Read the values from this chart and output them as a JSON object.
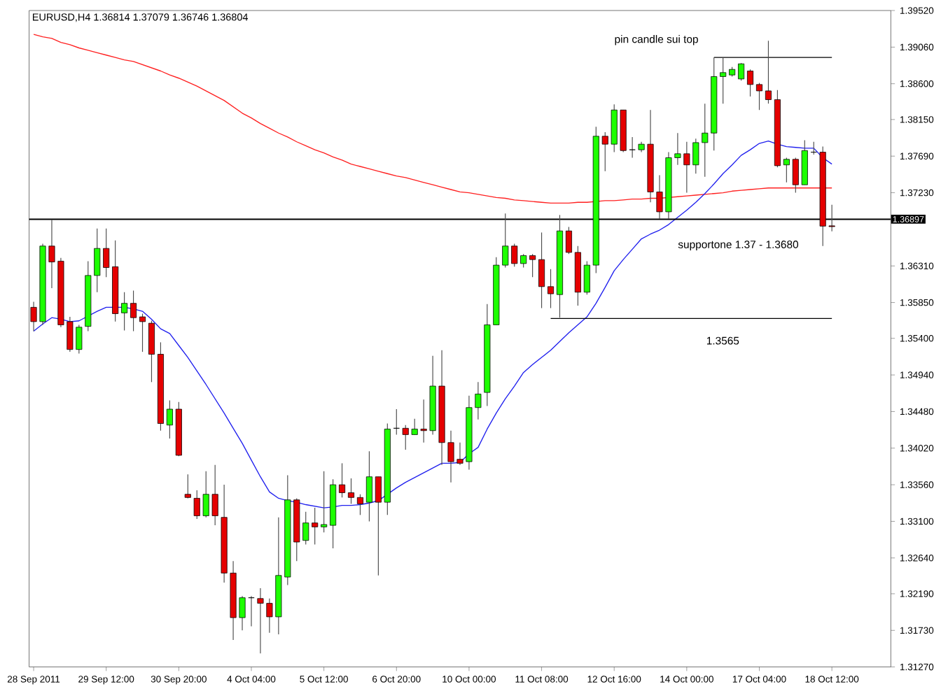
{
  "chart_data": {
    "type": "candlestick",
    "title": "EURUSD,H4  1.36814 1.37079 1.36746 1.36804",
    "categories": [
      "28 Sep 2011",
      null,
      null,
      null,
      null,
      null,
      null,
      null,
      "29 Sep 12:00",
      null,
      null,
      null,
      null,
      null,
      null,
      null,
      "30 Sep 20:00",
      null,
      null,
      null,
      null,
      null,
      null,
      null,
      "4 Oct 04:00",
      null,
      null,
      null,
      null,
      null,
      null,
      null,
      "5 Oct 12:00",
      null,
      null,
      null,
      null,
      null,
      null,
      null,
      "6 Oct 20:00",
      null,
      null,
      null,
      null,
      null,
      null,
      null,
      "10 Oct 00:00",
      null,
      null,
      null,
      null,
      null,
      null,
      null,
      "11 Oct 08:00",
      null,
      null,
      null,
      null,
      null,
      null,
      null,
      "12 Oct 16:00",
      null,
      null,
      null,
      null,
      null,
      null,
      null,
      "14 Oct 00:00",
      null,
      null,
      null,
      null,
      null,
      null,
      null,
      "17 Oct 04:00",
      null,
      null,
      null,
      null,
      null,
      null,
      null,
      "18 Oct 12:00"
    ],
    "ohlc": [
      [
        1.3579,
        1.3586,
        1.3549,
        1.3561
      ],
      [
        1.3561,
        1.3659,
        1.3557,
        1.3656
      ],
      [
        1.3656,
        1.3689,
        1.3603,
        1.3636
      ],
      [
        1.3637,
        1.3641,
        1.3554,
        1.3557
      ],
      [
        1.3561,
        1.3567,
        1.3523,
        1.3526
      ],
      [
        1.3526,
        1.3557,
        1.3521,
        1.3554
      ],
      [
        1.3555,
        1.3637,
        1.3549,
        1.3619
      ],
      [
        1.3619,
        1.3678,
        1.3598,
        1.3653
      ],
      [
        1.3653,
        1.3678,
        1.3617,
        1.3629
      ],
      [
        1.363,
        1.3663,
        1.3561,
        1.3571
      ],
      [
        1.3572,
        1.3598,
        1.355,
        1.3584
      ],
      [
        1.3584,
        1.36,
        1.3549,
        1.3566
      ],
      [
        1.3567,
        1.3571,
        1.3523,
        1.3561
      ],
      [
        1.3559,
        1.3562,
        1.3485,
        1.352
      ],
      [
        1.352,
        1.3535,
        1.3424,
        1.3433
      ],
      [
        1.3431,
        1.3462,
        1.3414,
        1.3451
      ],
      [
        1.3451,
        1.346,
        1.3392,
        1.3393
      ],
      [
        1.3344,
        1.3369,
        1.3339,
        1.334
      ],
      [
        1.3339,
        1.3349,
        1.3313,
        1.3317
      ],
      [
        1.3317,
        1.3373,
        1.3315,
        1.3344
      ],
      [
        1.3344,
        1.3381,
        1.3305,
        1.3317
      ],
      [
        1.3315,
        1.3356,
        1.3233,
        1.3245
      ],
      [
        1.3245,
        1.326,
        1.3161,
        1.3189
      ],
      [
        1.3189,
        1.3216,
        1.3173,
        1.3214
      ],
      [
        1.3214,
        1.3216,
        1.3178,
        1.3214
      ],
      [
        1.3213,
        1.3226,
        1.3144,
        1.3207
      ],
      [
        1.3207,
        1.3213,
        1.317,
        1.319
      ],
      [
        1.319,
        1.3315,
        1.3168,
        1.3242
      ],
      [
        1.324,
        1.3368,
        1.323,
        1.3337
      ],
      [
        1.3337,
        1.3339,
        1.326,
        1.3284
      ],
      [
        1.3286,
        1.3322,
        1.3281,
        1.3308
      ],
      [
        1.3308,
        1.3327,
        1.3281,
        1.3303
      ],
      [
        1.3303,
        1.3373,
        1.3296,
        1.3306
      ],
      [
        1.3305,
        1.3363,
        1.3276,
        1.3356
      ],
      [
        1.3356,
        1.3383,
        1.334,
        1.3346
      ],
      [
        1.3346,
        1.3364,
        1.3332,
        1.334
      ],
      [
        1.334,
        1.3344,
        1.3318,
        1.3332
      ],
      [
        1.3334,
        1.3398,
        1.331,
        1.3366
      ],
      [
        1.3366,
        1.3366,
        1.3242,
        1.3334
      ],
      [
        1.3334,
        1.3433,
        1.3318,
        1.3426
      ],
      [
        1.3427,
        1.3451,
        1.3419,
        1.3427
      ],
      [
        1.3427,
        1.3431,
        1.34,
        1.3419
      ],
      [
        1.3419,
        1.3439,
        1.3419,
        1.3426
      ],
      [
        1.3426,
        1.3463,
        1.3409,
        1.3424
      ],
      [
        1.3424,
        1.3518,
        1.3419,
        1.348
      ],
      [
        1.348,
        1.3525,
        1.3381,
        1.3409
      ],
      [
        1.3409,
        1.3424,
        1.3359,
        1.3385
      ],
      [
        1.3388,
        1.3409,
        1.3381,
        1.3383
      ],
      [
        1.3385,
        1.3468,
        1.3375,
        1.3453
      ],
      [
        1.3453,
        1.3485,
        1.3438,
        1.347
      ],
      [
        1.3472,
        1.3583,
        1.3455,
        1.3557
      ],
      [
        1.3557,
        1.3642,
        1.3557,
        1.3632
      ],
      [
        1.3632,
        1.3697,
        1.3629,
        1.3656
      ],
      [
        1.3656,
        1.3659,
        1.363,
        1.3634
      ],
      [
        1.3634,
        1.3646,
        1.3629,
        1.3644
      ],
      [
        1.3644,
        1.3646,
        1.3617,
        1.3639
      ],
      [
        1.3639,
        1.3673,
        1.3578,
        1.3605
      ],
      [
        1.3605,
        1.3627,
        1.3578,
        1.3596
      ],
      [
        1.3595,
        1.3695,
        1.3566,
        1.3675
      ],
      [
        1.3675,
        1.368,
        1.3646,
        1.3648
      ],
      [
        1.3648,
        1.3656,
        1.3581,
        1.3598
      ],
      [
        1.3598,
        1.3637,
        1.3595,
        1.3632
      ],
      [
        1.3632,
        1.3806,
        1.3622,
        1.3794
      ],
      [
        1.3794,
        1.3799,
        1.375,
        1.3784
      ],
      [
        1.3784,
        1.3834,
        1.3774,
        1.3827
      ],
      [
        1.3827,
        1.3827,
        1.3774,
        1.3776
      ],
      [
        1.3777,
        1.3793,
        1.3767,
        1.3777
      ],
      [
        1.3777,
        1.3787,
        1.3774,
        1.3784
      ],
      [
        1.3784,
        1.3827,
        1.3711,
        1.3724
      ],
      [
        1.3724,
        1.3745,
        1.369,
        1.3699
      ],
      [
        1.3699,
        1.3774,
        1.369,
        1.3767
      ],
      [
        1.3767,
        1.3798,
        1.3758,
        1.3772
      ],
      [
        1.3772,
        1.3787,
        1.3723,
        1.3758
      ],
      [
        1.3758,
        1.3791,
        1.3747,
        1.3786
      ],
      [
        1.3786,
        1.3835,
        1.3743,
        1.3798
      ],
      [
        1.3798,
        1.3893,
        1.3776,
        1.3869
      ],
      [
        1.3869,
        1.3893,
        1.3835,
        1.3874
      ],
      [
        1.3871,
        1.3881,
        1.3869,
        1.3878
      ],
      [
        1.3866,
        1.3886,
        1.3864,
        1.3885
      ],
      [
        1.3876,
        1.3878,
        1.3844,
        1.3859
      ],
      [
        1.3859,
        1.3861,
        1.3827,
        1.3851
      ],
      [
        1.3851,
        1.3914,
        1.3835,
        1.384
      ],
      [
        1.384,
        1.3852,
        1.3755,
        1.3757
      ],
      [
        1.3758,
        1.3767,
        1.3736,
        1.3765
      ],
      [
        1.3765,
        1.3767,
        1.3723,
        1.3733
      ],
      [
        1.3733,
        1.3789,
        1.3733,
        1.3776
      ],
      [
        1.3774,
        1.3787,
        1.3771,
        1.3774
      ],
      [
        1.3774,
        1.3781,
        1.3656,
        1.3681
      ],
      [
        1.36814,
        1.37079,
        1.36746,
        1.36804
      ]
    ],
    "series": [
      {
        "type": "line",
        "color": "#ff2020",
        "values": [
          1.3922,
          1.3919,
          1.3917,
          1.3912,
          1.3909,
          1.3905,
          1.3902,
          1.3899,
          1.3896,
          1.3893,
          1.389,
          1.3888,
          1.3884,
          1.388,
          1.3876,
          1.3871,
          1.3867,
          1.3862,
          1.3857,
          1.3851,
          1.3845,
          1.3839,
          1.3831,
          1.3823,
          1.3817,
          1.381,
          1.3804,
          1.3798,
          1.3793,
          1.3787,
          1.3782,
          1.3777,
          1.3773,
          1.3768,
          1.3764,
          1.3759,
          1.3756,
          1.3753,
          1.375,
          1.3747,
          1.3744,
          1.3742,
          1.3739,
          1.3736,
          1.3733,
          1.373,
          1.3727,
          1.3724,
          1.3723,
          1.3721,
          1.3719,
          1.3717,
          1.3716,
          1.3714,
          1.3713,
          1.3712,
          1.3711,
          1.371,
          1.371,
          1.371,
          1.3711,
          1.3711,
          1.3712,
          1.3713,
          1.3713,
          1.3714,
          1.3715,
          1.3715,
          1.3716,
          1.3716,
          1.3717,
          1.3718,
          1.3719,
          1.372,
          1.3721,
          1.3722,
          1.3723,
          1.3725,
          1.3726,
          1.3727,
          1.3728,
          1.3729,
          1.3729,
          1.3729,
          1.3729,
          1.3729,
          1.3729,
          1.3729,
          1.3729
        ]
      },
      {
        "type": "line",
        "color": "#2020ee",
        "values": [
          1.3549,
          1.3558,
          1.3566,
          1.3564,
          1.3561,
          1.3562,
          1.3568,
          1.3574,
          1.3579,
          1.3579,
          1.3579,
          1.3577,
          1.3574,
          1.3564,
          1.3552,
          1.3546,
          1.3531,
          1.3516,
          1.3499,
          1.3482,
          1.3464,
          1.3446,
          1.3427,
          1.3408,
          1.3387,
          1.3366,
          1.3347,
          1.3339,
          1.3336,
          1.3334,
          1.3331,
          1.3329,
          1.3327,
          1.3328,
          1.333,
          1.333,
          1.3331,
          1.3333,
          1.3336,
          1.3344,
          1.3352,
          1.3359,
          1.3365,
          1.3371,
          1.3377,
          1.3383,
          1.3383,
          1.3384,
          1.3395,
          1.3403,
          1.3426,
          1.3446,
          1.3464,
          1.348,
          1.3497,
          1.3507,
          1.3516,
          1.3525,
          1.3536,
          1.3547,
          1.3557,
          1.3567,
          1.3584,
          1.3604,
          1.3625,
          1.3639,
          1.3652,
          1.3665,
          1.3671,
          1.3676,
          1.3683,
          1.3692,
          1.3701,
          1.3711,
          1.3722,
          1.3734,
          1.3747,
          1.3758,
          1.377,
          1.3777,
          1.3785,
          1.3788,
          1.3784,
          1.3781,
          1.378,
          1.3779,
          1.3779,
          1.3767,
          1.3759
        ]
      },
      {
        "type": "line",
        "color": "#000000",
        "values": [
          null,
          null,
          null,
          null,
          null,
          null,
          null,
          null,
          null,
          null,
          null,
          null,
          null,
          null,
          null,
          null,
          null,
          null,
          null,
          null,
          null,
          null,
          null,
          null,
          null,
          null,
          null,
          null,
          null,
          null,
          null,
          null,
          null,
          null,
          null,
          null,
          null,
          null,
          null,
          null,
          null,
          null,
          null,
          null,
          null,
          null,
          null,
          null,
          null,
          null,
          null,
          null,
          null,
          null,
          null,
          null,
          null,
          null,
          null,
          null,
          null,
          null,
          null,
          null,
          null,
          null,
          null,
          null,
          null,
          null,
          null,
          null,
          null,
          null,
          null,
          1.3893,
          1.3893,
          1.3893,
          1.3893,
          1.3893,
          1.3893,
          1.3893,
          1.3893,
          1.3893,
          1.3893,
          1.3893,
          1.3893,
          1.3893,
          1.3893
        ]
      },
      {
        "type": "line",
        "color": "#000000",
        "values": [
          null,
          null,
          null,
          null,
          null,
          null,
          null,
          null,
          null,
          null,
          null,
          null,
          null,
          null,
          null,
          null,
          null,
          null,
          null,
          null,
          null,
          null,
          null,
          null,
          null,
          null,
          null,
          null,
          null,
          null,
          null,
          null,
          null,
          null,
          null,
          null,
          null,
          null,
          null,
          null,
          null,
          null,
          null,
          null,
          null,
          null,
          null,
          null,
          null,
          null,
          null,
          null,
          null,
          null,
          null,
          null,
          null,
          1.3565,
          1.3565,
          1.3565,
          1.3565,
          1.3565,
          1.3565,
          1.3565,
          1.3565,
          1.3565,
          1.3565,
          1.3565,
          1.3565,
          1.3565,
          1.3565,
          1.3565,
          1.3565,
          1.3565,
          1.3565,
          1.3565,
          1.3565,
          1.3565,
          1.3565,
          1.3565,
          1.3565,
          1.3565,
          1.3565,
          1.3565,
          1.3565,
          1.3565,
          1.3565,
          1.3565,
          1.3565
        ]
      }
    ],
    "ref_lines": [
      {
        "axis": "y",
        "value": 1.36897,
        "label": "1.36897",
        "color": "#000000"
      }
    ],
    "annotations": [
      "pin candle sui top",
      "supportone 1.37 - 1.3680",
      "1.3565"
    ],
    "ylim": [
      1.3127,
      1.3952
    ],
    "yticks": [
      {
        "value": 1.3127,
        "label": "1.31270"
      },
      {
        "value": 1.3173,
        "label": "1.31730"
      },
      {
        "value": 1.3219,
        "label": "1.32190"
      },
      {
        "value": 1.3264,
        "label": "1.32640"
      },
      {
        "value": 1.331,
        "label": "1.33100"
      },
      {
        "value": 1.3356,
        "label": "1.33560"
      },
      {
        "value": 1.3402,
        "label": "1.34020"
      },
      {
        "value": 1.3448,
        "label": "1.34480"
      },
      {
        "value": 1.3494,
        "label": "1.34940"
      },
      {
        "value": 1.354,
        "label": "1.35400"
      },
      {
        "value": 1.3585,
        "label": "1.35850"
      },
      {
        "value": 1.3631,
        "label": "1.36310"
      },
      {
        "value": 1.3723,
        "label": "1.37230"
      },
      {
        "value": 1.3769,
        "label": "1.37690"
      },
      {
        "value": 1.3815,
        "label": "1.38150"
      },
      {
        "value": 1.386,
        "label": "1.38600"
      },
      {
        "value": 1.3906,
        "label": "1.39060"
      },
      {
        "value": 1.3952,
        "label": "1.39520"
      }
    ]
  }
}
